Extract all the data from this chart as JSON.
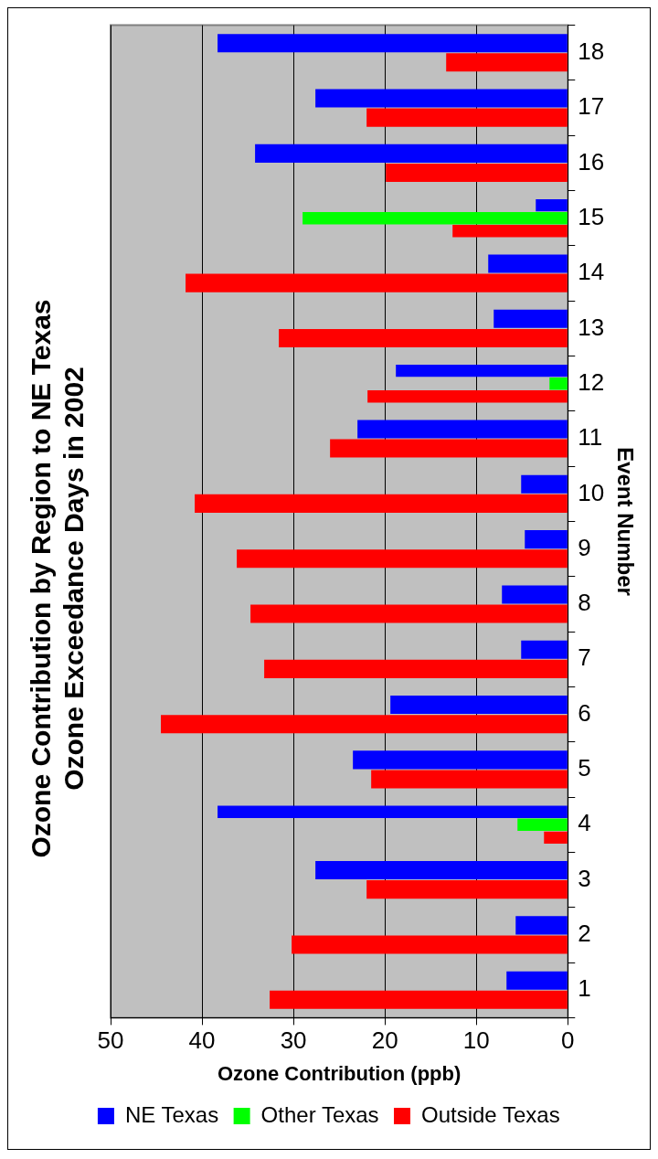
{
  "chart_data": {
    "type": "bar",
    "orientation": "horizontal",
    "title": "Ozone Contribution by Region to NE Texas Ozone Exceedance Days in 2002",
    "xlabel": "Ozone Contribution (ppb)",
    "ylabel": "Event Number",
    "categories": [
      "18",
      "17",
      "16",
      "15",
      "14",
      "13",
      "12",
      "11",
      "10",
      "9",
      "8",
      "7",
      "6",
      "5",
      "4",
      "3",
      "2",
      "1"
    ],
    "series": [
      {
        "name": "NE Texas",
        "color": "#0000ff",
        "values": [
          38.3,
          27.6,
          34.2,
          3.5,
          8.7,
          8.1,
          18.8,
          23.0,
          5.1,
          4.7,
          7.2,
          5.1,
          19.4,
          23.5,
          38.3,
          27.6,
          5.7,
          6.7
        ]
      },
      {
        "name": "Other Texas",
        "color": "#00ff00",
        "values": [
          null,
          null,
          null,
          29.0,
          null,
          null,
          2.0,
          null,
          null,
          null,
          null,
          null,
          null,
          null,
          5.5,
          null,
          null,
          null
        ]
      },
      {
        "name": "Outside Texas",
        "color": "#ff0000",
        "values": [
          13.3,
          22.0,
          19.9,
          12.6,
          41.8,
          31.6,
          21.9,
          26.0,
          40.8,
          36.2,
          34.7,
          33.2,
          44.5,
          21.5,
          2.6,
          22.0,
          30.2,
          32.6
        ]
      }
    ],
    "xlim": [
      50,
      0
    ],
    "xticks": [
      50,
      40,
      30,
      20,
      10,
      0
    ],
    "grid": "x",
    "legend": "bottom"
  }
}
